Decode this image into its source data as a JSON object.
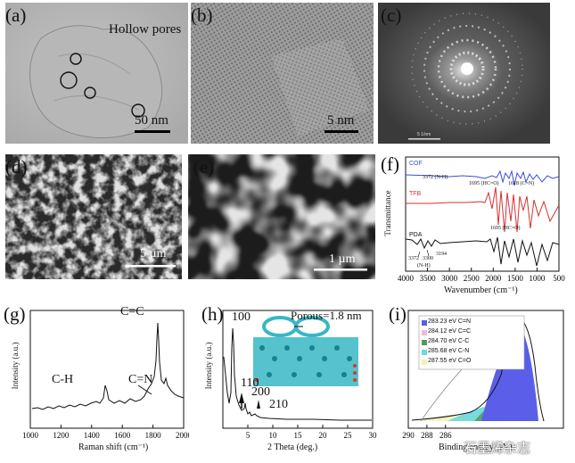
{
  "panels": {
    "a": {
      "label": "(a)",
      "annotation": "Hollow pores",
      "scale": "50 nm"
    },
    "b": {
      "label": "(b)",
      "scale": "5 nm"
    },
    "c": {
      "label": "(c)",
      "scale": "5 1/nm"
    },
    "d": {
      "label": "(d)",
      "scale": "5 µm"
    },
    "e": {
      "label": "(e)",
      "scale": "1 µm"
    },
    "f": {
      "label": "(f)"
    },
    "g": {
      "label": "(g)"
    },
    "h": {
      "label": "(h)",
      "inset": "Porous=1.8 nm"
    },
    "i": {
      "label": "(i)"
    }
  },
  "watermark": "石墨烯杂志",
  "chart_data": [
    {
      "id": "f",
      "type": "line",
      "xlabel": "Wavenumber (cm⁻¹)",
      "ylabel": "Transmittance",
      "xlim": [
        4000,
        500
      ],
      "xticks": [
        4000,
        3500,
        3000,
        2500,
        2000,
        1500,
        1000,
        500
      ],
      "series": [
        {
          "name": "COF",
          "color": "#3b4fd8"
        },
        {
          "name": "TFB",
          "color": "#d62f2f"
        },
        {
          "name": "PDA",
          "color": "#111111"
        }
      ],
      "annotations": [
        "3372 (N-H)",
        "1695 (HC=O)",
        "1618 (C=N)",
        "1695 (HC=O)",
        "3372",
        "3300",
        "3194",
        "(N-H)"
      ]
    },
    {
      "id": "g",
      "type": "line",
      "xlabel": "Raman shift (cm⁻¹)",
      "ylabel": "Intensity (a.u.)",
      "xlim": [
        1000,
        2000
      ],
      "xticks": [
        1000,
        1200,
        1400,
        1600,
        1800,
        2000
      ],
      "peaks": [
        {
          "label": "C-H",
          "x": 1160
        },
        {
          "label": "C=C",
          "x": 1575
        },
        {
          "label": "C=N",
          "x": 1620
        }
      ]
    },
    {
      "id": "h",
      "type": "line",
      "xlabel": "2 Theta (deg.)",
      "ylabel": "Intensity (a.u.)",
      "xlim": [
        0,
        30
      ],
      "xticks": [
        5,
        10,
        15,
        20,
        25,
        30
      ],
      "peaks": [
        {
          "label": "100",
          "x": 4.6
        },
        {
          "label": "110",
          "x": 7.9
        },
        {
          "label": "200",
          "x": 9.2
        },
        {
          "label": "210",
          "x": 12.0
        }
      ]
    },
    {
      "id": "i",
      "type": "area",
      "xlabel": "Binding energy (eV)",
      "xlim": [
        290,
        280
      ],
      "xticks": [
        290,
        288,
        286
      ],
      "series": [
        {
          "name": "283.23 eV C=N",
          "color": "#5b5ee8",
          "center": 283.23
        },
        {
          "name": "284.12 eV C=C",
          "color": "#f2b7d9",
          "center": 284.12
        },
        {
          "name": "284.70 eV C-C",
          "color": "#4f9a5f",
          "center": 284.7
        },
        {
          "name": "285.68 eV C-N",
          "color": "#6ad9e0",
          "center": 285.68
        },
        {
          "name": "287.55 eV C=O",
          "color": "#f4f0b0",
          "center": 287.55
        }
      ]
    }
  ]
}
